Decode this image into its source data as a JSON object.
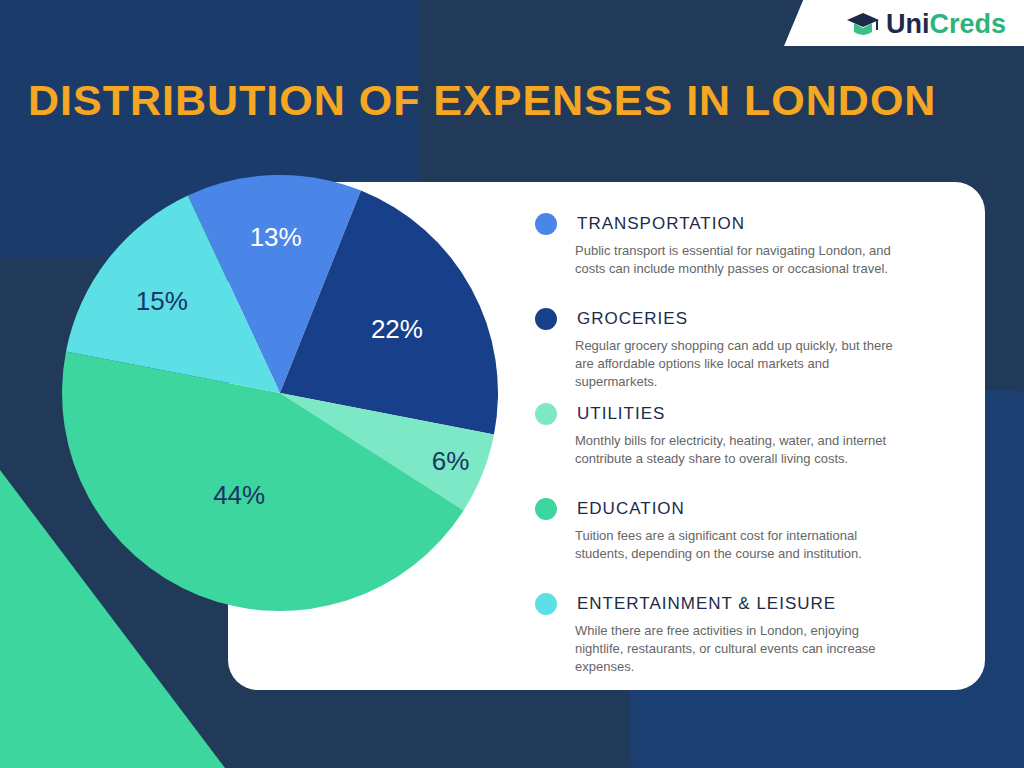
{
  "chart_data": {
    "type": "pie",
    "title": "DISTRIBUTION OF EXPENSES IN LONDON",
    "categories": [
      "TRANSPORTATION",
      "GROCERIES",
      "UTILITIES",
      "EDUCATION",
      "ENTERTAINMENT & LEISURE"
    ],
    "values": [
      13,
      22,
      6,
      44,
      15
    ],
    "value_labels": [
      "13%",
      "22%",
      "6%",
      "44%",
      "15%"
    ],
    "colors": [
      "#4a86e8",
      "#173f8a",
      "#7de8c6",
      "#3dd69e",
      "#5ce0e6"
    ],
    "data_labels": true,
    "annotations": [
      "Public transport is essential for navigating London, and costs can include monthly passes or occasional travel.",
      "Regular grocery shopping can add up quickly, but there are affordable options like local markets and supermarkets.",
      "Monthly bills for electricity, heating, water, and internet contribute a steady share to overall living costs.",
      "Tuition fees are a significant cost for international students, depending on the course and institution.",
      "While there are free activities in London, enjoying nightlife, restaurants, or cultural events can increase expenses."
    ]
  },
  "logo": "UniCreds"
}
